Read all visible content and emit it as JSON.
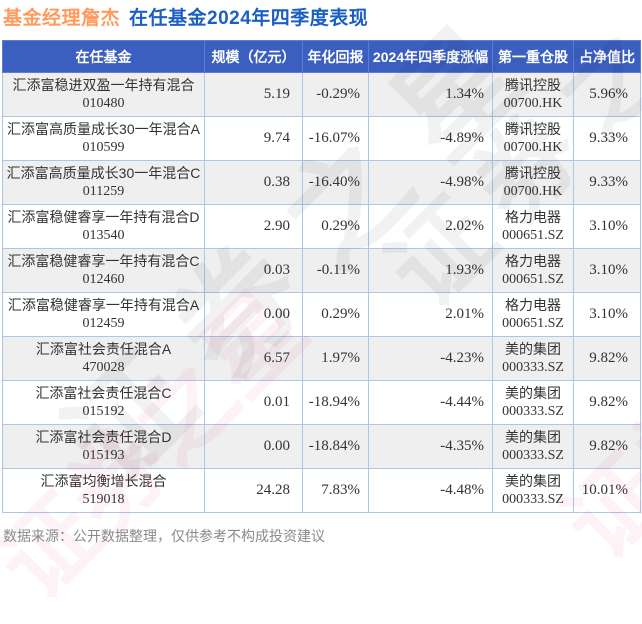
{
  "title": {
    "manager": "基金经理詹杰",
    "suffix": "在任基金2024年四季度表现"
  },
  "chart_data": {
    "type": "table",
    "title": "基金经理詹杰 在任基金2024年四季度表现",
    "columns": [
      "在任基金",
      "规模（亿元）",
      "年化回报",
      "2024年四季度涨幅",
      "第一重仓股",
      "占净值比"
    ],
    "rows": [
      {
        "fund_name": "汇添富稳进双盈一年持有混合",
        "fund_code": "010480",
        "scale": "5.19",
        "annualized_return": "-0.29%",
        "q4_change": "1.34%",
        "top_holding": "腾讯控股",
        "holding_code": "00700.HK",
        "weight": "5.96%"
      },
      {
        "fund_name": "汇添富高质量成长30一年混合A",
        "fund_code": "010599",
        "scale": "9.74",
        "annualized_return": "-16.07%",
        "q4_change": "-4.89%",
        "top_holding": "腾讯控股",
        "holding_code": "00700.HK",
        "weight": "9.33%"
      },
      {
        "fund_name": "汇添富高质量成长30一年混合C",
        "fund_code": "011259",
        "scale": "0.38",
        "annualized_return": "-16.40%",
        "q4_change": "-4.98%",
        "top_holding": "腾讯控股",
        "holding_code": "00700.HK",
        "weight": "9.33%"
      },
      {
        "fund_name": "汇添富稳健睿享一年持有混合D",
        "fund_code": "013540",
        "scale": "2.90",
        "annualized_return": "0.29%",
        "q4_change": "2.02%",
        "top_holding": "格力电器",
        "holding_code": "000651.SZ",
        "weight": "3.10%"
      },
      {
        "fund_name": "汇添富稳健睿享一年持有混合C",
        "fund_code": "012460",
        "scale": "0.03",
        "annualized_return": "-0.11%",
        "q4_change": "1.93%",
        "top_holding": "格力电器",
        "holding_code": "000651.SZ",
        "weight": "3.10%"
      },
      {
        "fund_name": "汇添富稳健睿享一年持有混合A",
        "fund_code": "012459",
        "scale": "0.00",
        "annualized_return": "0.29%",
        "q4_change": "2.01%",
        "top_holding": "格力电器",
        "holding_code": "000651.SZ",
        "weight": "3.10%"
      },
      {
        "fund_name": "汇添富社会责任混合A",
        "fund_code": "470028",
        "scale": "6.57",
        "annualized_return": "1.97%",
        "q4_change": "-4.23%",
        "top_holding": "美的集团",
        "holding_code": "000333.SZ",
        "weight": "9.82%"
      },
      {
        "fund_name": "汇添富社会责任混合C",
        "fund_code": "015192",
        "scale": "0.01",
        "annualized_return": "-18.94%",
        "q4_change": "-4.44%",
        "top_holding": "美的集团",
        "holding_code": "000333.SZ",
        "weight": "9.82%"
      },
      {
        "fund_name": "汇添富社会责任混合D",
        "fund_code": "015193",
        "scale": "0.00",
        "annualized_return": "-18.84%",
        "q4_change": "-4.35%",
        "top_holding": "美的集团",
        "holding_code": "000333.SZ",
        "weight": "9.82%"
      },
      {
        "fund_name": "汇添富均衡增长混合",
        "fund_code": "519018",
        "scale": "24.28",
        "annualized_return": "7.83%",
        "q4_change": "-4.48%",
        "top_holding": "美的集团",
        "holding_code": "000333.SZ",
        "weight": "10.01%"
      }
    ]
  },
  "footer": {
    "source_note": "数据来源：公开数据整理，仅供参考不构成投资建议"
  },
  "watermark": {
    "text": "证券之星"
  },
  "colors": {
    "positive_red": "#e62e2e",
    "negative_green": "#14a053",
    "header_bg": "#3a5fc0",
    "title_orange": "#ff9b5e",
    "title_blue": "#1c5fc4",
    "row_alt_gray": "#efefef",
    "border_blue": "#adc6e6"
  }
}
